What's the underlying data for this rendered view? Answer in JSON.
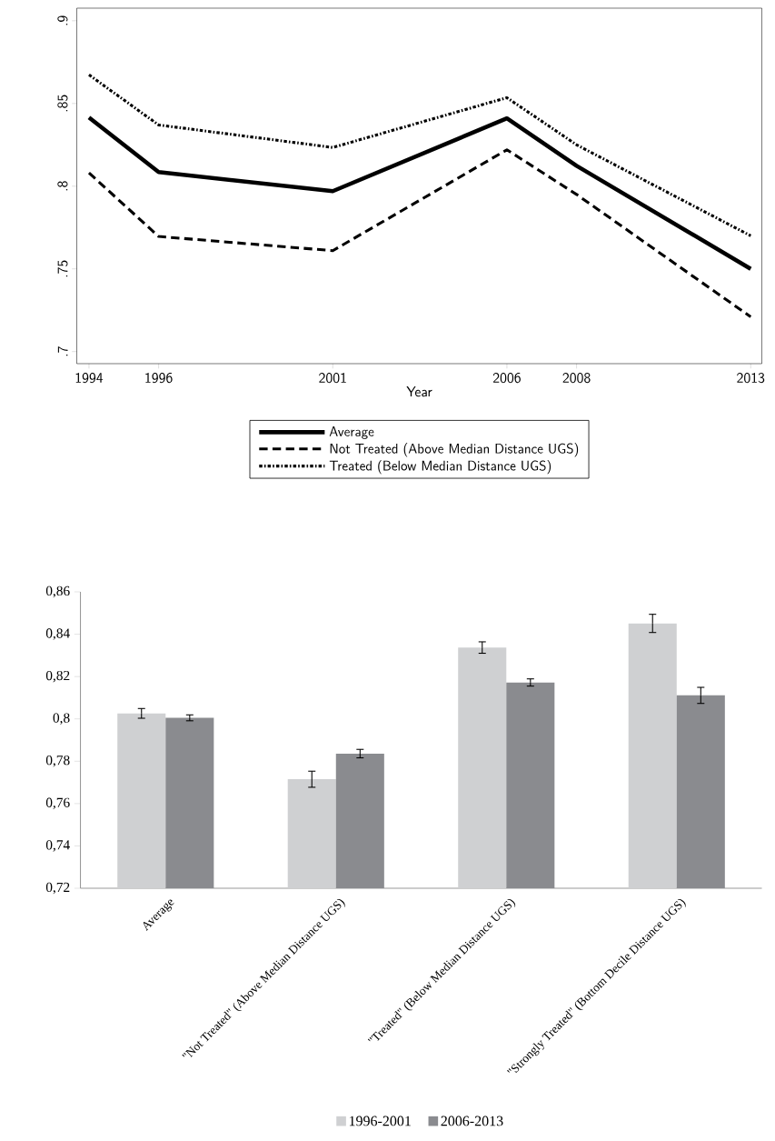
{
  "chart_data": [
    {
      "type": "line",
      "xlabel": "Year",
      "x": [
        1994,
        1996,
        2001,
        2006,
        2008,
        2013
      ],
      "xlim": [
        1993.65,
        2013.32
      ],
      "xticks": [
        1994,
        1996,
        2001,
        2006,
        2008,
        2013
      ],
      "ylim": [
        0.6927,
        0.9076
      ],
      "yticks": [
        {
          "value": 0.7,
          "label": ".7"
        },
        {
          "value": 0.75,
          "label": ".75"
        },
        {
          "value": 0.8,
          "label": ".8"
        },
        {
          "value": 0.85,
          "label": ".85"
        },
        {
          "value": 0.9,
          "label": ".9"
        }
      ],
      "legend": "bottom",
      "grid": false,
      "series": [
        {
          "name": "Average",
          "color": "#000000",
          "line_style": "solid",
          "values": [
            0.8415,
            0.8085,
            0.797,
            0.841,
            0.8123,
            0.75
          ]
        },
        {
          "name": "Not Treated (Above Median Distance UGS)",
          "color": "#000000",
          "line_style": "dashed",
          "values": [
            0.808,
            0.7696,
            0.761,
            0.822,
            0.795,
            0.721
          ]
        },
        {
          "name": "Treated (Below Median Distance UGS)",
          "color": "#000000",
          "line_style": "dotted",
          "values": [
            0.8673,
            0.837,
            0.8234,
            0.8535,
            0.825,
            0.77
          ]
        }
      ]
    },
    {
      "type": "bar",
      "categories": [
        "Average",
        "\"Not Treated\" (Above Median Distance UGS)",
        "\"Treated\" (Below Median Distance UGS)",
        "\"Strongly Treated\" (Bottom Decile Distance UGS)"
      ],
      "ylim": [
        0.72,
        0.86
      ],
      "yticks": [
        {
          "value": 0.72,
          "label": "0,72"
        },
        {
          "value": 0.74,
          "label": "0,74"
        },
        {
          "value": 0.76,
          "label": "0,76"
        },
        {
          "value": 0.78,
          "label": "0,78"
        },
        {
          "value": 0.8,
          "label": "0,8"
        },
        {
          "value": 0.82,
          "label": "0,82"
        },
        {
          "value": 0.84,
          "label": "0,84"
        },
        {
          "value": 0.86,
          "label": "0,86"
        }
      ],
      "legend": "bottom",
      "grid": false,
      "series": [
        {
          "name": "1996-2001",
          "color": "#cfd0d2",
          "values": [
            0.8026,
            0.7715,
            0.8337,
            0.8451
          ],
          "errors": [
            0.0023,
            0.0038,
            0.0027,
            0.0043
          ]
        },
        {
          "name": "2006-2013",
          "color": "#8a8b8f",
          "values": [
            0.8005,
            0.7836,
            0.8172,
            0.8111
          ],
          "errors": [
            0.0014,
            0.002,
            0.0017,
            0.0038
          ]
        }
      ]
    }
  ]
}
